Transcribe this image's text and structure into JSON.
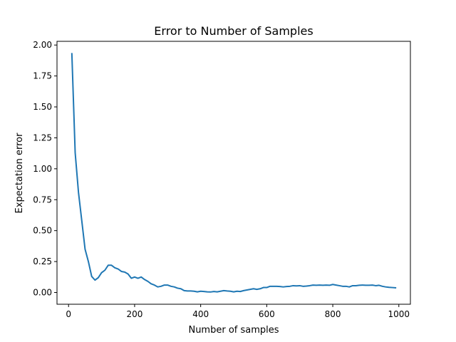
{
  "chart_data": {
    "type": "line",
    "title": "Error to Number of Samples",
    "xlabel": "Number of samples",
    "ylabel": "Expectation error",
    "xlim": [
      -35,
      1035
    ],
    "ylim": [
      -0.095,
      2.03
    ],
    "xticks": [
      0,
      200,
      400,
      600,
      800,
      1000
    ],
    "xtick_labels": [
      "0",
      "200",
      "400",
      "600",
      "800",
      "1000"
    ],
    "yticks": [
      0.0,
      0.25,
      0.5,
      0.75,
      1.0,
      1.25,
      1.5,
      1.75,
      2.0
    ],
    "ytick_labels": [
      "0.00",
      "0.25",
      "0.50",
      "0.75",
      "1.00",
      "1.25",
      "1.50",
      "1.75",
      "2.00"
    ],
    "grid": false,
    "line_color": "#1f77b4",
    "series": [
      {
        "x": [
          10,
          20,
          30,
          40,
          50,
          60,
          70,
          80,
          90,
          100,
          110,
          120,
          130,
          140,
          150,
          160,
          170,
          180,
          190,
          200,
          210,
          220,
          230,
          240,
          250,
          260,
          270,
          280,
          290,
          300,
          310,
          320,
          330,
          340,
          350,
          360,
          370,
          380,
          390,
          400,
          410,
          420,
          430,
          440,
          450,
          460,
          470,
          480,
          490,
          500,
          510,
          520,
          530,
          540,
          550,
          560,
          570,
          580,
          590,
          600,
          610,
          620,
          630,
          640,
          650,
          660,
          670,
          680,
          690,
          700,
          710,
          720,
          730,
          740,
          750,
          760,
          770,
          780,
          790,
          800,
          810,
          820,
          830,
          840,
          850,
          860,
          870,
          880,
          890,
          900,
          910,
          920,
          930,
          940,
          950,
          960,
          970,
          980,
          990
        ],
        "values": [
          1.93,
          1.13,
          0.81,
          0.58,
          0.35,
          0.25,
          0.13,
          0.1,
          0.12,
          0.16,
          0.18,
          0.22,
          0.22,
          0.2,
          0.19,
          0.17,
          0.165,
          0.15,
          0.115,
          0.125,
          0.115,
          0.125,
          0.105,
          0.09,
          0.07,
          0.06,
          0.045,
          0.05,
          0.06,
          0.06,
          0.05,
          0.045,
          0.035,
          0.03,
          0.015,
          0.012,
          0.012,
          0.01,
          0.005,
          0.01,
          0.008,
          0.005,
          0.004,
          0.008,
          0.005,
          0.01,
          0.015,
          0.012,
          0.01,
          0.005,
          0.01,
          0.008,
          0.015,
          0.02,
          0.025,
          0.03,
          0.025,
          0.03,
          0.04,
          0.04,
          0.05,
          0.05,
          0.05,
          0.048,
          0.045,
          0.048,
          0.05,
          0.055,
          0.053,
          0.055,
          0.05,
          0.052,
          0.055,
          0.06,
          0.058,
          0.06,
          0.058,
          0.06,
          0.058,
          0.065,
          0.06,
          0.055,
          0.05,
          0.05,
          0.045,
          0.055,
          0.055,
          0.058,
          0.06,
          0.058,
          0.058,
          0.06,
          0.055,
          0.058,
          0.05,
          0.045,
          0.042,
          0.04,
          0.038
        ]
      }
    ]
  }
}
